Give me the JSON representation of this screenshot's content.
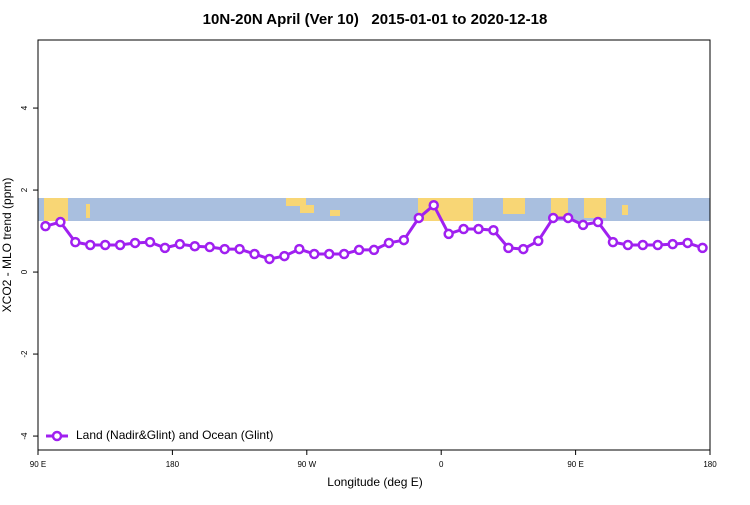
{
  "chart_data": {
    "type": "line",
    "title": "10N-20N April (Ver 10)   2015-01-01 to 2020-12-18",
    "x_label": "Longitude (deg E)",
    "y_label": "XCO2 - MLO trend (ppm)",
    "x": [
      95,
      105,
      115,
      125,
      135,
      145,
      155,
      165,
      175,
      185,
      195,
      205,
      215,
      225,
      235,
      245,
      255,
      265,
      275,
      285,
      295,
      305,
      315,
      325,
      335,
      345,
      355,
      365,
      375,
      385,
      395,
      405,
      415,
      425,
      435,
      445,
      455,
      465,
      475,
      485,
      495,
      505,
      515,
      525,
      535
    ],
    "series": [
      {
        "name": "Land (Nadir&Glint) and Ocean (Glint)",
        "color": "#a020f0",
        "values": [
          1.12,
          1.22,
          0.73,
          0.66,
          0.66,
          0.66,
          0.71,
          0.73,
          0.59,
          0.68,
          0.63,
          0.61,
          0.56,
          0.56,
          0.44,
          0.32,
          0.39,
          0.56,
          0.44,
          0.44,
          0.44,
          0.54,
          0.54,
          0.71,
          0.78,
          1.32,
          1.63,
          0.93,
          1.05,
          1.05,
          1.02,
          0.59,
          0.56,
          0.76,
          1.32,
          1.32,
          1.15,
          1.22,
          0.73,
          0.66,
          0.66,
          0.66,
          0.68,
          0.71,
          0.59
        ]
      }
    ],
    "xlim": [
      90,
      540
    ],
    "xticks": [
      {
        "value": 90,
        "label": "90 E"
      },
      {
        "value": 180,
        "label": "180"
      },
      {
        "value": 270,
        "label": "90 W"
      },
      {
        "value": 360,
        "label": "0"
      },
      {
        "value": 450,
        "label": "90 E"
      },
      {
        "value": 540,
        "label": "180"
      }
    ],
    "ylim": [
      -4.34,
      5.66
    ],
    "yticks": [
      -4,
      -2,
      0,
      2,
      4
    ],
    "grid": false,
    "legend": "bottomleft"
  }
}
